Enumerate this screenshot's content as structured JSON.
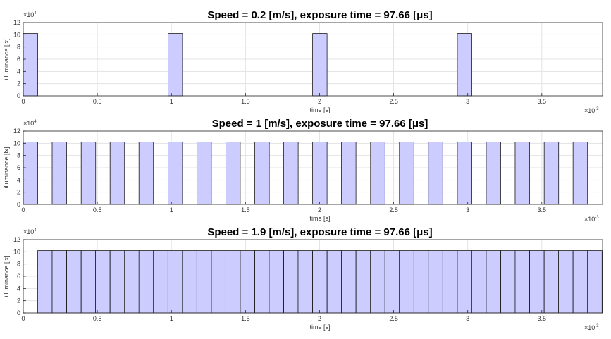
{
  "chart_data": [
    {
      "type": "bar",
      "title": "Speed = 0.2 [m/s], exposure time = 97.66 [μs]",
      "xlabel": "time [s]",
      "ylabel": "illuminance [lx]",
      "x_exponent": "×10",
      "x_exponent_power": "-3",
      "y_exponent": "×10",
      "y_exponent_power": "4",
      "xlim": [
        0,
        0.00391
      ],
      "ylim": [
        0,
        12
      ],
      "xticks": [
        "0",
        "0.5",
        "1",
        "1.5",
        "2",
        "2.5",
        "3",
        "3.5"
      ],
      "xtick_values": [
        0,
        0.5,
        1,
        1.5,
        2,
        2.5,
        3,
        3.5
      ],
      "yticks": [
        "0",
        "2",
        "4",
        "6",
        "8",
        "10",
        "12"
      ],
      "ytick_values": [
        0,
        2,
        4,
        6,
        8,
        10,
        12
      ],
      "grid": true,
      "bar_color": "#ccccff",
      "pulse_value": 10.2,
      "pulse_width": 9.77e-05,
      "pulse_starts": [
        0,
        0.000977,
        0.001953,
        0.00293
      ]
    },
    {
      "type": "bar",
      "title": "Speed = 1 [m/s], exposure time = 97.66 [μs]",
      "xlabel": "time [s]",
      "ylabel": "illuminance [lx]",
      "x_exponent": "×10",
      "x_exponent_power": "-3",
      "y_exponent": "×10",
      "y_exponent_power": "4",
      "xlim": [
        0,
        0.00391
      ],
      "ylim": [
        0,
        12
      ],
      "xticks": [
        "0",
        "0.5",
        "1",
        "1.5",
        "2",
        "2.5",
        "3",
        "3.5"
      ],
      "xtick_values": [
        0,
        0.5,
        1,
        1.5,
        2,
        2.5,
        3,
        3.5
      ],
      "yticks": [
        "0",
        "2",
        "4",
        "6",
        "8",
        "10",
        "12"
      ],
      "ytick_values": [
        0,
        2,
        4,
        6,
        8,
        10,
        12
      ],
      "grid": true,
      "bar_color": "#ccccff",
      "pulse_value": 10.2,
      "pulse_width": 9.77e-05,
      "pulse_starts": [
        0,
        0.000195,
        0.000391,
        0.000586,
        0.000781,
        0.000977,
        0.001172,
        0.001367,
        0.001563,
        0.001758,
        0.001953,
        0.002148,
        0.002344,
        0.002539,
        0.002734,
        0.00293,
        0.003125,
        0.00332,
        0.003516,
        0.003711
      ]
    },
    {
      "type": "bar",
      "title": "Speed = 1.9 [m/s], exposure time = 97.66 [μs]",
      "xlabel": "time [s]",
      "ylabel": "illuminance [lx]",
      "x_exponent": "×10",
      "x_exponent_power": "-3",
      "y_exponent": "×10",
      "y_exponent_power": "4",
      "xlim": [
        0,
        0.00391
      ],
      "ylim": [
        0,
        12
      ],
      "xticks": [
        "0",
        "0.5",
        "1",
        "1.5",
        "2",
        "2.5",
        "3",
        "3.5"
      ],
      "xtick_values": [
        0,
        0.5,
        1,
        1.5,
        2,
        2.5,
        3,
        3.5
      ],
      "yticks": [
        "0",
        "2",
        "4",
        "6",
        "8",
        "10",
        "12"
      ],
      "ytick_values": [
        0,
        2,
        4,
        6,
        8,
        10,
        12
      ],
      "grid": true,
      "bar_color": "#ccccff",
      "pulse_value": 10.2,
      "pulse_width": 9.77e-05,
      "pulse_starts": [
        9.77e-05,
        0.000195,
        0.000293,
        0.000391,
        0.000488,
        0.000586,
        0.000684,
        0.000781,
        0.000879,
        0.000977,
        0.001074,
        0.001172,
        0.00127,
        0.001367,
        0.001465,
        0.001563,
        0.00166,
        0.001758,
        0.001855,
        0.001953,
        0.002051,
        0.002148,
        0.002246,
        0.002344,
        0.002441,
        0.002539,
        0.002637,
        0.002734,
        0.002832,
        0.00293,
        0.003027,
        0.003125,
        0.003223,
        0.00332,
        0.003418,
        0.003516,
        0.003613,
        0.003711,
        0.003809
      ]
    }
  ]
}
